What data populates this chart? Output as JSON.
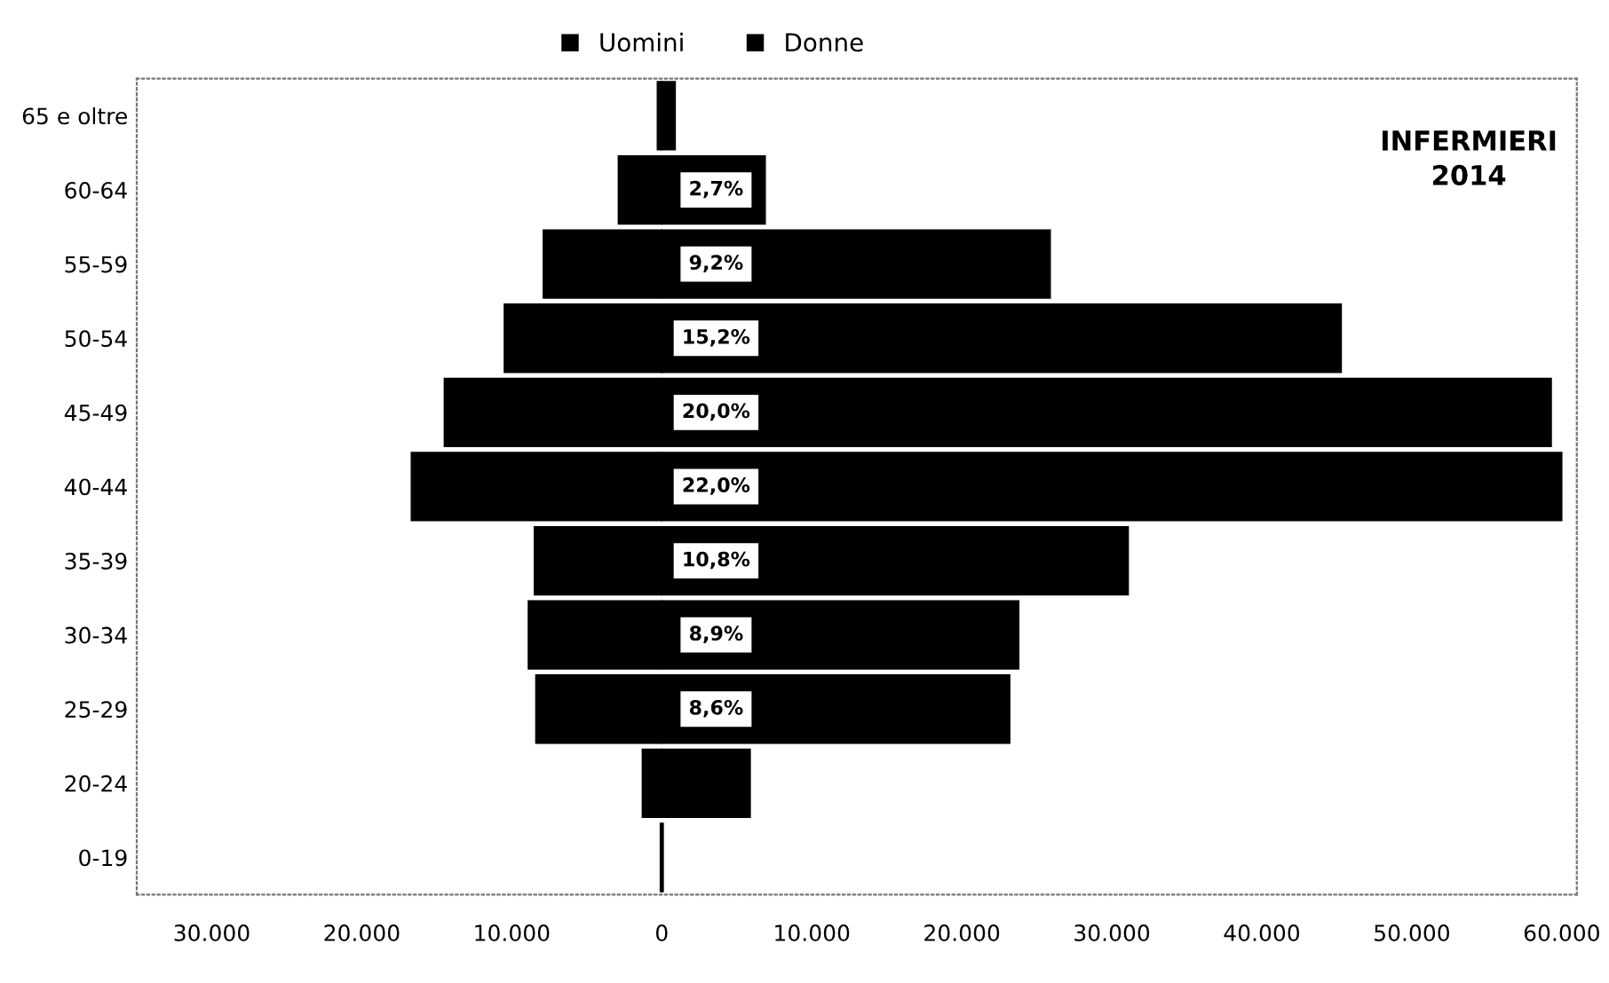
{
  "chart_data": {
    "type": "bar",
    "orientation": "horizontal",
    "title": "INFERMIERI\n2014",
    "categories": [
      "65 e oltre",
      "60-64",
      "55-59",
      "50-54",
      "45-49",
      "40-44",
      "35-39",
      "30-34",
      "25-29",
      "20-24",
      "0-19"
    ],
    "series": [
      {
        "name": "Uomini",
        "color": "#000000",
        "values": [
          -300,
          -2900,
          -7900,
          -10500,
          -14500,
          -16700,
          -8500,
          -8900,
          -8400,
          -1300,
          -100
        ]
      },
      {
        "name": "Donne",
        "color": "#000000",
        "values": [
          900,
          6900,
          25900,
          45300,
          59300,
          60000,
          31100,
          23800,
          23200,
          5900,
          100
        ]
      }
    ],
    "stacked": true,
    "xlim": [
      -35000,
      61000
    ],
    "xticks": [
      {
        "value": -30000,
        "label": "30.000"
      },
      {
        "value": -20000,
        "label": "20.000"
      },
      {
        "value": -10000,
        "label": "10.000"
      },
      0,
      {
        "value": 10000,
        "label": "10.000"
      },
      {
        "value": 20000,
        "label": "20.000"
      },
      {
        "value": 30000,
        "label": "30.000"
      },
      {
        "value": 40000,
        "label": "40.000"
      },
      {
        "value": 50000,
        "label": "50.000"
      },
      {
        "value": 60000,
        "label": "60.000"
      }
    ],
    "annotations": [
      {
        "text": "2,7%",
        "y": "60-64"
      },
      {
        "text": "9,2%",
        "y": "55-59"
      },
      {
        "text": "15,2%",
        "y": "50-54"
      },
      {
        "text": "20,0%",
        "y": "45-49"
      },
      {
        "text": "22,0%",
        "y": "40-44"
      },
      {
        "text": "10,8%",
        "y": "35-39"
      },
      {
        "text": "8,9%",
        "y": "30-34"
      },
      {
        "text": "8,6%",
        "y": "25-29"
      }
    ],
    "legend": "top",
    "grid": false
  }
}
